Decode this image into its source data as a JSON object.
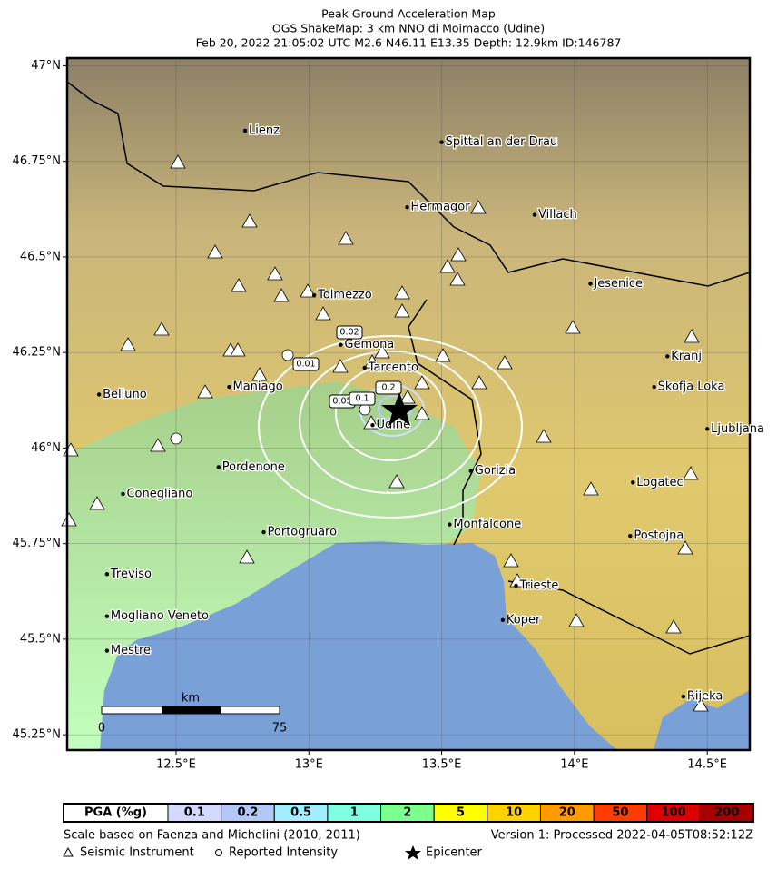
{
  "map": {
    "title": [
      "Peak Ground Acceleration Map",
      "OGS ShakeMap: 3 km NNO di Moimacco (Udine)",
      "Feb 20, 2022 21:05:02 UTC M2.6 N46.11 E13.35 Depth: 12.9km ID:146787"
    ],
    "xlim": [
      12.09,
      14.66
    ],
    "ylim": [
      45.21,
      47.02
    ],
    "xticks": [
      {
        "value": 12.5,
        "label": "12.5°E"
      },
      {
        "value": 13,
        "label": "13°E"
      },
      {
        "value": 13.5,
        "label": "13.5°E"
      },
      {
        "value": 14,
        "label": "14°E"
      },
      {
        "value": 14.5,
        "label": "14.5°E"
      }
    ],
    "yticks": [
      {
        "value": 47,
        "label": "47°N"
      },
      {
        "value": 46.75,
        "label": "46.75°N"
      },
      {
        "value": 46.5,
        "label": "46.5°N"
      },
      {
        "value": 46.25,
        "label": "46.25°N"
      },
      {
        "value": 46,
        "label": "46°N"
      },
      {
        "value": 45.75,
        "label": "45.75°N"
      },
      {
        "value": 45.5,
        "label": "45.5°N"
      },
      {
        "value": 45.25,
        "label": "45.25°N"
      }
    ],
    "grid": true,
    "cities": [
      {
        "name": "Lienz",
        "lon": 12.76,
        "lat": 46.83
      },
      {
        "name": "Spittal an der Drau",
        "lon": 13.5,
        "lat": 46.8
      },
      {
        "name": "Hermagor",
        "lon": 13.37,
        "lat": 46.63
      },
      {
        "name": "Villach",
        "lon": 13.85,
        "lat": 46.61
      },
      {
        "name": "Jesenice",
        "lon": 14.06,
        "lat": 46.43
      },
      {
        "name": "Tolmezzo",
        "lon": 13.02,
        "lat": 46.4
      },
      {
        "name": "Gemona",
        "lon": 13.12,
        "lat": 46.27
      },
      {
        "name": "Tarcento",
        "lon": 13.21,
        "lat": 46.21
      },
      {
        "name": "Maniago",
        "lon": 12.7,
        "lat": 46.16
      },
      {
        "name": "Belluno",
        "lon": 12.21,
        "lat": 46.14
      },
      {
        "name": "Kranj",
        "lon": 14.35,
        "lat": 46.24
      },
      {
        "name": "Skofja Loka",
        "lon": 14.3,
        "lat": 46.16
      },
      {
        "name": "Ljubljana",
        "lon": 14.5,
        "lat": 46.05
      },
      {
        "name": "Udine",
        "lon": 13.24,
        "lat": 46.06
      },
      {
        "name": "Pordenone",
        "lon": 12.66,
        "lat": 45.95
      },
      {
        "name": "Conegliano",
        "lon": 12.3,
        "lat": 45.88
      },
      {
        "name": "Gorizia",
        "lon": 13.61,
        "lat": 45.94
      },
      {
        "name": "Logatec",
        "lon": 14.22,
        "lat": 45.91
      },
      {
        "name": "Portogruaro",
        "lon": 12.83,
        "lat": 45.78
      },
      {
        "name": "Monfalcone",
        "lon": 13.53,
        "lat": 45.8
      },
      {
        "name": "Postojna",
        "lon": 14.21,
        "lat": 45.77
      },
      {
        "name": "Treviso",
        "lon": 12.24,
        "lat": 45.67
      },
      {
        "name": "Trieste",
        "lon": 13.78,
        "lat": 45.64
      },
      {
        "name": "Mogliano Veneto",
        "lon": 12.24,
        "lat": 45.56
      },
      {
        "name": "Koper",
        "lon": 13.73,
        "lat": 45.55
      },
      {
        "name": "Mestre",
        "lon": 12.24,
        "lat": 45.47
      },
      {
        "name": "Rijeka",
        "lon": 14.41,
        "lat": 45.35
      }
    ],
    "contour_labels": [
      "0.02",
      "0.01",
      "0.05",
      "0.1",
      "0.2"
    ],
    "scale_bar": {
      "unit": "km",
      "start": "0",
      "end": "75"
    },
    "colorbar": {
      "label": "PGA (%g)",
      "bins": [
        {
          "value": 0.1,
          "color": "#d3d9ff"
        },
        {
          "value": 0.2,
          "color": "#b4c8f8"
        },
        {
          "value": 0.5,
          "color": "#a0eeff"
        },
        {
          "value": 1,
          "color": "#80ffe0"
        },
        {
          "value": 2,
          "color": "#7dff90"
        },
        {
          "value": 5,
          "color": "#ffff00"
        },
        {
          "value": 10,
          "color": "#ffd200"
        },
        {
          "value": 20,
          "color": "#ff9a00"
        },
        {
          "value": 50,
          "color": "#ff3c00"
        },
        {
          "value": 100,
          "color": "#de0000"
        },
        {
          "value": 200,
          "color": "#a60000"
        }
      ]
    },
    "footer": {
      "left": "Scale based on Faenza and Michelini (2010, 2011)",
      "right": "Version 1: Processed 2022-04-05T08:52:12Z"
    },
    "legend": [
      "Seismic Instrument",
      "Reported Intensity",
      "Epicenter"
    ]
  }
}
